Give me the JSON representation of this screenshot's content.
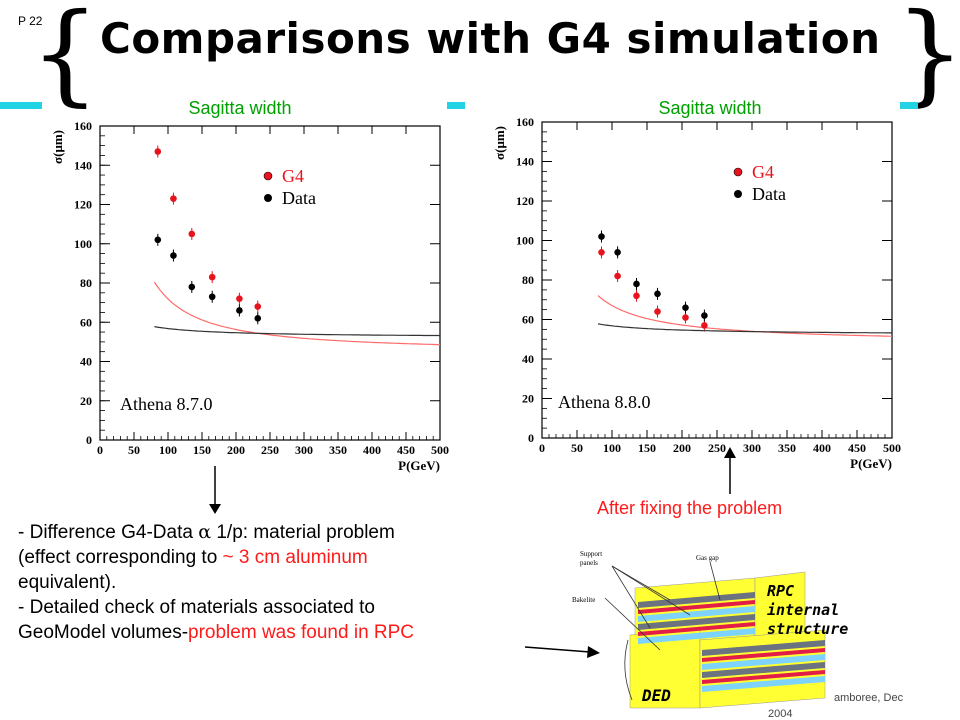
{
  "page_number": "P 22",
  "title": "Comparisons with G4 simulation",
  "chart_data": [
    {
      "type": "scatter",
      "title": "Sagitta width",
      "xlabel": "P(GeV)",
      "ylabel": "σ(μm)",
      "xlim": [
        0,
        500
      ],
      "ylim": [
        0,
        160
      ],
      "x_ticks": [
        0,
        50,
        100,
        150,
        200,
        250,
        300,
        350,
        400,
        450,
        500
      ],
      "y_ticks": [
        0,
        20,
        40,
        60,
        80,
        100,
        120,
        140,
        160
      ],
      "annotation": "Athena 8.7.0",
      "series": [
        {
          "name": "G4",
          "color": "#e8141d",
          "x": [
            85,
            108,
            135,
            165,
            205,
            232
          ],
          "y": [
            147,
            123,
            105,
            83,
            72,
            68
          ],
          "fit": {
            "a": 8500,
            "c": 45,
            "p": 1.25
          }
        },
        {
          "name": "Data",
          "color": "#000000",
          "x": [
            85,
            108,
            135,
            165,
            205,
            232
          ],
          "y": [
            102,
            94,
            78,
            73,
            66,
            62
          ],
          "fit": {
            "a": 240,
            "c": 52,
            "p": 0.85
          }
        }
      ]
    },
    {
      "type": "scatter",
      "title": "Sagitta width",
      "xlabel": "P(GeV)",
      "ylabel": "σ(μm)",
      "xlim": [
        0,
        500
      ],
      "ylim": [
        0,
        160
      ],
      "x_ticks": [
        0,
        50,
        100,
        150,
        200,
        250,
        300,
        350,
        400,
        450,
        500
      ],
      "y_ticks": [
        0,
        20,
        40,
        60,
        80,
        100,
        120,
        140,
        160
      ],
      "annotation": "Athena 8.8.0",
      "series": [
        {
          "name": "G4",
          "color": "#e8141d",
          "x": [
            85,
            108,
            135,
            165,
            205,
            232
          ],
          "y": [
            94,
            82,
            72,
            64,
            61,
            57
          ],
          "fit": {
            "a": 2400,
            "c": 48,
            "p": 1.05
          }
        },
        {
          "name": "Data",
          "color": "#000000",
          "x": [
            85,
            108,
            135,
            165,
            205,
            232
          ],
          "y": [
            102,
            94,
            78,
            73,
            66,
            62
          ],
          "fit": {
            "a": 240,
            "c": 52,
            "p": 0.85
          }
        }
      ]
    }
  ],
  "bottom_text": {
    "line1_a": "- Difference G4-Data ",
    "line1_symbol": "α",
    "line1_b": " 1/p: material problem",
    "line2_a": "(effect corresponding to ",
    "line2_red": "~ 3 cm aluminum",
    "line3": "equivalent).",
    "line4": "- Detailed check of materials associated to",
    "line5_a": "GeoModel volumes-",
    "line5_red": "problem was found in RPC"
  },
  "fix_label": "After fixing the problem",
  "rpc_figure": {
    "labels": [
      "Support panels",
      "Bakelite",
      "Gas gap"
    ],
    "support_a": "Support",
    "support_b": "panels",
    "caption_1": "RPC",
    "caption_2": "internal",
    "caption_3": "structure",
    "ded": "DED"
  },
  "footer": {
    "left": "amboree, Dec",
    "right": "2004"
  },
  "colors": {
    "accent_bar": "#22d3e6",
    "title_green": "#00a000",
    "highlight_red": "#ff1a1a",
    "rpc_yellow": "#ffff33"
  }
}
